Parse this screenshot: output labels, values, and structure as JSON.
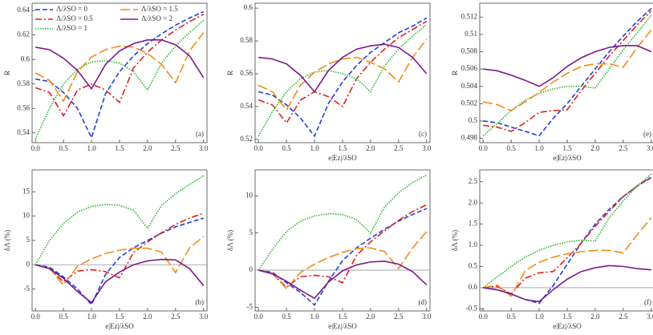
{
  "chart_data": [
    {
      "type": "line",
      "panel_label": "(a)",
      "ylabel": "R",
      "legend": "upper left",
      "x": [
        0,
        0.25,
        0.5,
        0.75,
        1,
        1.25,
        1.5,
        1.75,
        2,
        2.25,
        2.5,
        2.75,
        3
      ],
      "xlim": [
        -0.06,
        3.06
      ],
      "ylim": [
        0.532,
        0.646
      ],
      "xticks": [
        {
          "value": 0,
          "label": "0.0"
        },
        0.5,
        {
          "value": 1,
          "label": "1.0"
        },
        1.5,
        {
          "value": 2,
          "label": "2.0"
        },
        2.5,
        {
          "value": 3,
          "label": "3.0"
        }
      ],
      "yticks": [
        0.54,
        0.56,
        0.58,
        0.6,
        0.62,
        0.64
      ],
      "series": [
        {
          "name": "Λ/λSO = 0",
          "color": "#1f3fd6",
          "dash": "6,3",
          "values": [
            0.584,
            0.582,
            0.573,
            0.56,
            0.536,
            0.572,
            0.59,
            0.603,
            0.613,
            0.621,
            0.628,
            0.634,
            0.639
          ]
        },
        {
          "name": "Λ/λSO = 0.5",
          "color": "#e0201b",
          "dash": "8,3,2,3",
          "values": [
            0.577,
            0.573,
            0.554,
            0.575,
            0.58,
            0.575,
            0.565,
            0.593,
            0.606,
            0.616,
            0.624,
            0.631,
            0.637
          ]
        },
        {
          "name": "Λ/λSO = 1",
          "color": "#2ab52a",
          "dash": "1.5,1.5",
          "values": [
            0.535,
            0.56,
            0.58,
            0.592,
            0.598,
            0.599,
            0.597,
            0.59,
            0.575,
            0.597,
            0.611,
            0.622,
            0.632
          ]
        },
        {
          "name": "Λ/λSO = 1.5",
          "color": "#f08c1a",
          "dash": "12,4",
          "values": [
            0.589,
            0.583,
            0.566,
            0.59,
            0.602,
            0.608,
            0.611,
            0.61,
            0.605,
            0.596,
            0.581,
            0.607,
            0.622
          ]
        },
        {
          "name": "Λ/λSO = 2",
          "color": "#7a1a8c",
          "dash": "none",
          "values": [
            0.61,
            0.608,
            0.601,
            0.591,
            0.576,
            0.596,
            0.607,
            0.613,
            0.616,
            0.616,
            0.612,
            0.603,
            0.585
          ]
        }
      ]
    },
    {
      "type": "line",
      "panel_label": "(c)",
      "ylabel": "R",
      "xlabel": "e|Ez|/λSO",
      "x": [
        0,
        0.25,
        0.5,
        0.75,
        1,
        1.25,
        1.5,
        1.75,
        2,
        2.25,
        2.5,
        2.75,
        3
      ],
      "xlim": [
        -0.06,
        3.06
      ],
      "ylim": [
        0.518,
        0.603
      ],
      "xticks": [
        {
          "value": 0,
          "label": "0.0"
        },
        0.5,
        {
          "value": 1,
          "label": "1.0"
        },
        1.5,
        {
          "value": 2,
          "label": "2.0"
        },
        2.5,
        {
          "value": 3,
          "label": "3.0"
        }
      ],
      "yticks": [
        0.52,
        0.54,
        0.56,
        0.58,
        0.6
      ],
      "series": [
        {
          "color": "#1f3fd6",
          "dash": "6,3",
          "values": [
            0.549,
            0.547,
            0.541,
            0.533,
            0.522,
            0.542,
            0.555,
            0.565,
            0.573,
            0.579,
            0.585,
            0.589,
            0.594
          ]
        },
        {
          "color": "#e0201b",
          "dash": "8,3,2,3",
          "values": [
            0.544,
            0.541,
            0.53,
            0.544,
            0.549,
            0.546,
            0.54,
            0.557,
            0.567,
            0.575,
            0.582,
            0.587,
            0.592
          ]
        },
        {
          "color": "#2ab52a",
          "dash": "1.5,1.5",
          "values": [
            0.522,
            0.537,
            0.549,
            0.557,
            0.561,
            0.562,
            0.56,
            0.557,
            0.549,
            0.565,
            0.575,
            0.583,
            0.59
          ]
        },
        {
          "color": "#f08c1a",
          "dash": "12,4",
          "values": [
            0.553,
            0.549,
            0.538,
            0.553,
            0.561,
            0.566,
            0.569,
            0.57,
            0.567,
            0.563,
            0.555,
            0.57,
            0.581
          ]
        },
        {
          "color": "#7a1a8c",
          "dash": "none",
          "values": [
            0.57,
            0.569,
            0.566,
            0.559,
            0.549,
            0.562,
            0.57,
            0.575,
            0.577,
            0.578,
            0.576,
            0.57,
            0.56
          ]
        }
      ]
    },
    {
      "type": "line",
      "panel_label": "(e)",
      "ylabel": "R",
      "xlabel": "e|Ez|/λSO",
      "x": [
        0,
        0.25,
        0.5,
        0.75,
        1,
        1.25,
        1.5,
        1.75,
        2,
        2.25,
        2.5,
        2.75,
        3
      ],
      "xlim": [
        -0.06,
        3.06
      ],
      "ylim": [
        0.4975,
        0.5136
      ],
      "xticks": [
        {
          "value": 0,
          "label": "0.0"
        },
        0.5,
        {
          "value": 1,
          "label": "1.0"
        },
        1.5,
        {
          "value": 2,
          "label": "2.0"
        },
        2.5,
        {
          "value": 3,
          "label": "3.0"
        }
      ],
      "yticks": [
        0.498,
        0.5,
        0.502,
        0.504,
        0.506,
        0.508,
        0.51,
        0.512
      ],
      "series": [
        {
          "color": "#1f3fd6",
          "dash": "6,3",
          "values": [
            0.5,
            0.4998,
            0.4993,
            0.4988,
            0.4983,
            0.5003,
            0.502,
            0.504,
            0.506,
            0.508,
            0.5098,
            0.5115,
            0.513
          ]
        },
        {
          "color": "#e0201b",
          "dash": "8,3,2,3",
          "values": [
            0.4995,
            0.4993,
            0.4988,
            0.4998,
            0.501,
            0.5012,
            0.5013,
            0.5035,
            0.5055,
            0.5075,
            0.5093,
            0.5111,
            0.5127
          ]
        },
        {
          "color": "#2ab52a",
          "dash": "1.5,1.5",
          "values": [
            0.4983,
            0.4997,
            0.5012,
            0.5024,
            0.5032,
            0.5037,
            0.504,
            0.504,
            0.5038,
            0.506,
            0.5082,
            0.5102,
            0.5122
          ]
        },
        {
          "color": "#f08c1a",
          "dash": "12,4",
          "values": [
            0.5022,
            0.5019,
            0.5012,
            0.5022,
            0.5033,
            0.5045,
            0.5055,
            0.5063,
            0.5066,
            0.5066,
            0.5062,
            0.5085,
            0.5105
          ]
        },
        {
          "color": "#7a1a8c",
          "dash": "none",
          "values": [
            0.506,
            0.5058,
            0.5053,
            0.5047,
            0.504,
            0.505,
            0.5063,
            0.5073,
            0.508,
            0.5085,
            0.5087,
            0.5087,
            0.508
          ]
        }
      ]
    },
    {
      "type": "line",
      "panel_label": "(b)",
      "ylabel": "δΛ (%)",
      "xlabel": "e|Ez|/λSO",
      "zero_line": true,
      "x": [
        0,
        0.25,
        0.5,
        0.75,
        1,
        1.25,
        1.5,
        1.75,
        2,
        2.25,
        2.5,
        2.75,
        3
      ],
      "xlim": [
        -0.06,
        3.06
      ],
      "ylim": [
        -9.5,
        19.5
      ],
      "xticks": [
        {
          "value": 0,
          "label": "0.0"
        },
        0.5,
        {
          "value": 1,
          "label": "1.0"
        },
        1.5,
        {
          "value": 2,
          "label": "2.0"
        },
        2.5,
        {
          "value": 3,
          "label": "3.0"
        }
      ],
      "yticks": [
        -5,
        0,
        5,
        10,
        15
      ],
      "series": [
        {
          "color": "#1f3fd6",
          "dash": "6,3",
          "values": [
            0,
            -0.5,
            -2.5,
            -5,
            -8.2,
            -2,
            1.5,
            3.5,
            5,
            6.5,
            7.8,
            8.7,
            9.6
          ]
        },
        {
          "color": "#e0201b",
          "dash": "8,3,2,3",
          "values": [
            0,
            -0.8,
            -3.5,
            -1.3,
            -1,
            -1.4,
            -2.7,
            2.5,
            4.7,
            6.6,
            8.3,
            9.6,
            10.6
          ]
        },
        {
          "color": "#2ab52a",
          "dash": "1.5,1.5",
          "values": [
            0,
            5,
            8.5,
            10.8,
            12,
            12.4,
            12.2,
            11.2,
            7.5,
            12.2,
            14.6,
            16.5,
            18.3
          ]
        },
        {
          "color": "#f08c1a",
          "dash": "12,4",
          "values": [
            0,
            -0.7,
            -4.2,
            -0.3,
            1.2,
            2.3,
            3,
            3.4,
            3.4,
            2.6,
            -1.6,
            3.5,
            5.8
          ]
        },
        {
          "color": "#7a1a8c",
          "dash": "none",
          "values": [
            0,
            -0.8,
            -2.8,
            -5.5,
            -7.8,
            -3.5,
            -1.5,
            0,
            0.8,
            1.1,
            1,
            -0.8,
            -4.3
          ]
        }
      ]
    },
    {
      "type": "line",
      "panel_label": "(d)",
      "ylabel": "δΛ (%)",
      "xlabel": "e|Ez|/λSO",
      "zero_line": true,
      "x": [
        0,
        0.25,
        0.5,
        0.75,
        1,
        1.25,
        1.5,
        1.75,
        2,
        2.25,
        2.5,
        2.75,
        3
      ],
      "xlim": [
        -0.06,
        3.06
      ],
      "ylim": [
        -5.5,
        13.5
      ],
      "xticks": [
        {
          "value": 0,
          "label": "0.0"
        },
        0.5,
        {
          "value": 1,
          "label": "1.0"
        },
        1.5,
        {
          "value": 2,
          "label": "2.0"
        },
        2.5,
        {
          "value": 3,
          "label": "3.0"
        }
      ],
      "yticks": [
        -5,
        0,
        5,
        10
      ],
      "series": [
        {
          "color": "#1f3fd6",
          "dash": "6,3",
          "values": [
            0,
            -0.3,
            -1.7,
            -3,
            -4.7,
            -1.5,
            1.3,
            3,
            4.3,
            5.5,
            6.6,
            7.5,
            8.3
          ]
        },
        {
          "color": "#e0201b",
          "dash": "8,3,2,3",
          "values": [
            0,
            -0.5,
            -2.3,
            -0.9,
            -0.7,
            -0.9,
            -1.7,
            2,
            3.8,
            5.3,
            6.7,
            7.9,
            8.8
          ]
        },
        {
          "color": "#2ab52a",
          "dash": "1.5,1.5",
          "values": [
            0,
            2.8,
            5.2,
            6.6,
            7.3,
            7.6,
            7.5,
            6.8,
            5,
            8.5,
            10.4,
            11.8,
            12.8
          ]
        },
        {
          "color": "#f08c1a",
          "dash": "12,4",
          "values": [
            0,
            -0.4,
            -2.5,
            -0.3,
            0.8,
            1.7,
            2.4,
            2.9,
            3,
            2.5,
            0.2,
            3,
            5.2
          ]
        },
        {
          "color": "#7a1a8c",
          "dash": "none",
          "values": [
            0,
            -0.5,
            -1.5,
            -2.7,
            -3.8,
            -1.6,
            -0.1,
            0.7,
            1.1,
            1.2,
            0.8,
            -0.2,
            -2
          ]
        }
      ]
    },
    {
      "type": "line",
      "panel_label": "(f)",
      "ylabel": "δΛ (%)",
      "xlabel": "e|Ez|/λSO",
      "zero_line": true,
      "x": [
        0,
        0.25,
        0.5,
        0.75,
        1,
        1.25,
        1.5,
        1.75,
        2,
        2.25,
        2.5,
        2.75,
        3
      ],
      "xlim": [
        -0.06,
        3.06
      ],
      "ylim": [
        -0.55,
        2.78
      ],
      "xticks": [
        {
          "value": 0,
          "label": "0.0"
        },
        0.5,
        {
          "value": 1,
          "label": "1.0"
        },
        1.5,
        {
          "value": 2,
          "label": "2.0"
        },
        2.5,
        {
          "value": 3,
          "label": "3.0"
        }
      ],
      "yticks": [
        -0.5,
        {
          "value": 0,
          "label": "0.0"
        },
        0.5,
        {
          "value": 1,
          "label": "1.0"
        },
        1.5,
        {
          "value": 2,
          "label": "2.0"
        },
        2.5
      ],
      "series": [
        {
          "color": "#1f3fd6",
          "dash": "6,3",
          "values": [
            0,
            -0.05,
            -0.15,
            -0.28,
            -0.37,
            0.05,
            0.55,
            1.05,
            1.5,
            1.85,
            2.15,
            2.4,
            2.6
          ]
        },
        {
          "color": "#e0201b",
          "dash": "8,3,2,3",
          "values": [
            0,
            0.03,
            -0.15,
            0.22,
            0.35,
            0.38,
            0.7,
            1.05,
            1.45,
            1.8,
            2.15,
            2.4,
            2.62
          ]
        },
        {
          "color": "#2ab52a",
          "dash": "1.5,1.5",
          "values": [
            0,
            0.25,
            0.5,
            0.72,
            0.88,
            1,
            1.08,
            1.12,
            1.1,
            1.65,
            2.05,
            2.4,
            2.68
          ]
        },
        {
          "color": "#f08c1a",
          "dash": "12,4",
          "values": [
            0,
            0.06,
            -0.2,
            0.4,
            0.6,
            0.72,
            0.8,
            0.85,
            0.88,
            0.88,
            0.82,
            1.25,
            1.65
          ]
        },
        {
          "color": "#7a1a8c",
          "dash": "none",
          "values": [
            0,
            -0.05,
            -0.15,
            -0.28,
            -0.33,
            -0.05,
            0.2,
            0.38,
            0.47,
            0.52,
            0.5,
            0.45,
            0.42
          ]
        }
      ]
    }
  ]
}
